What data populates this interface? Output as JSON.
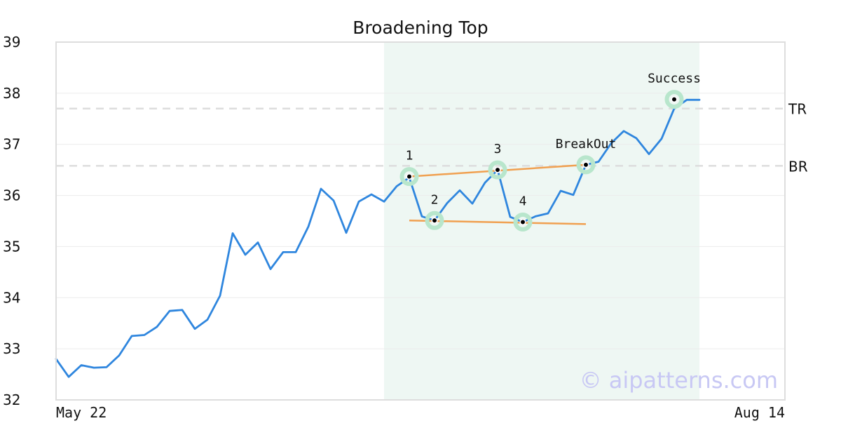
{
  "chart_data": {
    "type": "line",
    "title": "Broadening Top",
    "xlabel": "",
    "ylabel": "",
    "ylim": [
      32,
      39
    ],
    "yticks": [
      32,
      33,
      34,
      35,
      36,
      37,
      38,
      39
    ],
    "x_tick_labels": [
      {
        "index": 0,
        "label": "May 22"
      },
      {
        "index": 58,
        "label": "Aug 14"
      }
    ],
    "grid": true,
    "series": [
      {
        "color": "#2f86de",
        "values": [
          32.8,
          32.45,
          32.68,
          32.63,
          32.64,
          32.87,
          33.25,
          33.27,
          33.43,
          33.74,
          33.76,
          33.39,
          33.57,
          34.04,
          35.26,
          34.84,
          35.08,
          34.56,
          34.89,
          34.89,
          35.39,
          36.13,
          35.9,
          35.27,
          35.88,
          36.02,
          35.88,
          36.18,
          36.35,
          35.59,
          35.51,
          35.85,
          36.1,
          35.84,
          36.25,
          36.5,
          35.58,
          35.48,
          35.59,
          35.65,
          36.09,
          36.01,
          36.6,
          36.66,
          37.02,
          37.26,
          37.12,
          36.81,
          37.11,
          37.7,
          37.87,
          37.87
        ]
      }
    ],
    "shaded_region": {
      "x_start": 26,
      "x_end": 51,
      "color": "#eef7f3"
    },
    "reference_lines": [
      {
        "label": "TR",
        "y": 37.7,
        "color": "#dddddd"
      },
      {
        "label": "BR",
        "y": 36.58,
        "color": "#dddddd"
      }
    ],
    "trend_lines": [
      {
        "from": [
          28,
          36.37
        ],
        "to": [
          42,
          36.6
        ],
        "color": "#f0a050"
      },
      {
        "from": [
          28,
          35.51
        ],
        "to": [
          42,
          35.44
        ],
        "color": "#f0a050"
      }
    ],
    "points": [
      {
        "label": "1",
        "x": 28,
        "y": 36.37,
        "label_pos": "above"
      },
      {
        "label": "2",
        "x": 30,
        "y": 35.51,
        "label_pos": "above"
      },
      {
        "label": "3",
        "x": 35,
        "y": 36.5,
        "label_pos": "above"
      },
      {
        "label": "4",
        "x": 37,
        "y": 35.48,
        "label_pos": "above"
      },
      {
        "label": "BreakOut",
        "x": 42,
        "y": 36.6,
        "label_pos": "above"
      },
      {
        "label": "Success",
        "x": 49,
        "y": 37.88,
        "label_pos": "above"
      }
    ],
    "point_halo_color": "#b8e6cc",
    "watermark": "© aipatterns.com",
    "watermark_color": "#c8c8f4"
  }
}
